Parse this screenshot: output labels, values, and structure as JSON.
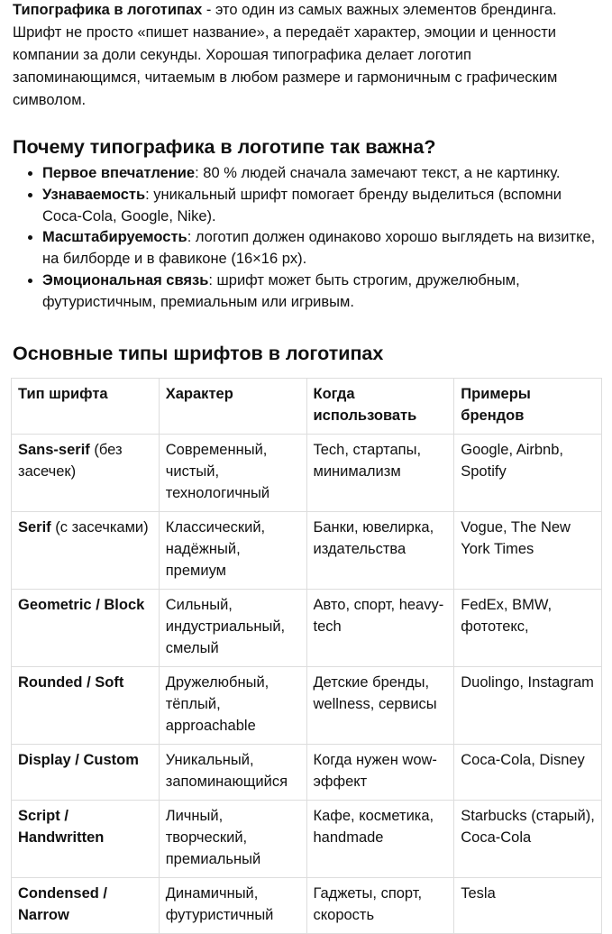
{
  "intro": {
    "bold": "Типографика в логотипах",
    "text": " - это один из самых важных элементов брендинга. Шрифт не просто «пишет название», а передаёт характер, эмоции и ценности компании за доли секунды. Хорошая типографика делает логотип запоминающимся, читаемым в любом размере и гармоничным с графическим символом."
  },
  "why": {
    "heading": "Почему типографика в логотипе так важна?",
    "items": [
      {
        "bold": "Первое впечатление",
        "text": ": 80 % людей сначала замечают текст, а не картинку."
      },
      {
        "bold": "Узнаваемость",
        "text": ": уникальный шрифт помогает бренду выделиться (вспомни Coca-Cola, Google, Nike)."
      },
      {
        "bold": "Масштабируемость",
        "text": ": логотип должен одинаково хорошо выглядеть на визитке, на билборде и в фавиконе (16×16 px)."
      },
      {
        "bold": "Эмоциональная связь",
        "text": ": шрифт может быть строгим, дружелюбным, футуристичным, премиальным или игривым."
      }
    ]
  },
  "types": {
    "heading": "Основные типы шрифтов в логотипах",
    "headers": [
      "Тип шрифта",
      "Характер",
      "Когда использовать",
      "Примеры брендов"
    ],
    "rows": [
      {
        "type": "Sans-serif",
        "type_note": " (без засечек)",
        "character": "Современный, чистый, технологичный",
        "when": "Tech, стартапы, минимализм",
        "examples": "Google, Airbnb, Spotify"
      },
      {
        "type": "Serif",
        "type_note": " (с засечками)",
        "character": "Классический, надёжный, премиум",
        "when": "Банки, ювелирка, издательства",
        "examples": "Vogue, The New York Times"
      },
      {
        "type": "Geometric / Block",
        "type_note": "",
        "character": "Сильный, индустриальный, смелый",
        "when": "Авто, спорт, heavy-tech",
        "examples": "FedEx, BMW, фототекс,"
      },
      {
        "type": "Rounded / Soft",
        "type_note": "",
        "character": "Дружелюбный, тёплый, approachable",
        "when": "Детские бренды, wellness, сервисы",
        "examples": "Duolingo, Instagram"
      },
      {
        "type": "Display / Custom",
        "type_note": "",
        "character": "Уникальный, запоминающийся",
        "when": "Когда нужен wow-эффект",
        "examples": "Coca-Cola, Disney"
      },
      {
        "type": "Script / Handwritten",
        "type_note": "",
        "character": "Личный, творческий, премиальный",
        "when": "Кафе, косметика, handmade",
        "examples": "Starbucks (старый), Coca-Cola"
      },
      {
        "type": "Condensed / Narrow",
        "type_note": "",
        "character": "Динамичный, футуристичный",
        "when": "Гаджеты, спорт, скорость",
        "examples": "Tesla"
      }
    ]
  }
}
